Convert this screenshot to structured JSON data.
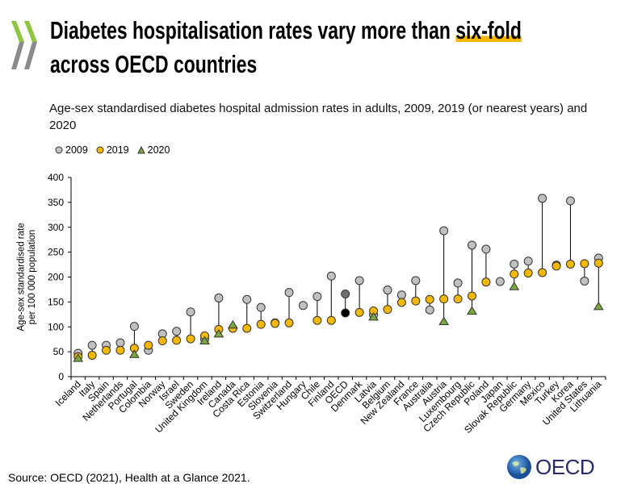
{
  "header": {
    "title_line1_prefix": "Diabetes hospitalisation rates vary more than ",
    "title_highlight": "six-fold",
    "title_line2": "across OECD countries",
    "subtitle": "Age-sex standardised diabetes hospital admission rates in adults, 2009, 2019 (or nearest years) and 2020"
  },
  "colors": {
    "s2009": "#c0c0c0",
    "s2019": "#f5b800",
    "s2020": "#7aa83a",
    "oecd2019": "#000000",
    "oecd2009": "#707070",
    "highlight": "#f5b800"
  },
  "chart_data": {
    "type": "scatter",
    "ylabel": "Age-sex standardised rate per 100 000 population",
    "ylim": [
      0,
      400
    ],
    "yticks": [
      "0",
      "50",
      "100",
      "150",
      "200",
      "250",
      "300",
      "350",
      "400"
    ],
    "legend_position": "top-left",
    "categories": [
      "Iceland",
      "Italy",
      "Spain",
      "Netherlands",
      "Portugal",
      "Colombia",
      "Norway",
      "Israel",
      "Sweden",
      "United Kingdom",
      "Ireland",
      "Canada",
      "Costa Rica",
      "Estonia",
      "Slovenia",
      "Switzerland",
      "Hungary",
      "Chile",
      "Finland",
      "OECD",
      "Denmark",
      "Latvia",
      "Belgium",
      "New Zealand",
      "France",
      "Australia",
      "Austria",
      "Luxembourg",
      "Czech Republic",
      "Poland",
      "Japan",
      "Slovak Republic",
      "Germany",
      "Mexico",
      "Turkey",
      "Korea",
      "United States",
      "Lithuania"
    ],
    "series": [
      {
        "name": "2009",
        "marker": "circle",
        "values": [
          47,
          63,
          63,
          68,
          101,
          53,
          86,
          91,
          130,
          75,
          158,
          null,
          155,
          139,
          108,
          169,
          143,
          161,
          202,
          166,
          193,
          124,
          174,
          164,
          193,
          134,
          293,
          188,
          264,
          256,
          191,
          226,
          232,
          358,
          224,
          353,
          192,
          238
        ]
      },
      {
        "name": "2019",
        "marker": "circle",
        "values": [
          40,
          43,
          53,
          53,
          57,
          63,
          72,
          73,
          76,
          82,
          95,
          97,
          97,
          105,
          107,
          108,
          null,
          113,
          113,
          128,
          129,
          132,
          135,
          149,
          152,
          155,
          156,
          156,
          162,
          190,
          null,
          206,
          208,
          209,
          222,
          226,
          227,
          228
        ]
      },
      {
        "name": "2020",
        "marker": "triangle",
        "values": [
          37,
          null,
          null,
          null,
          45,
          null,
          null,
          null,
          null,
          72,
          86,
          104,
          null,
          null,
          null,
          null,
          null,
          null,
          null,
          null,
          null,
          120,
          null,
          null,
          null,
          null,
          111,
          null,
          132,
          null,
          null,
          181,
          null,
          null,
          null,
          null,
          null,
          141
        ]
      }
    ]
  },
  "footer": {
    "source": "Source: OECD (2021), Health at a Glance 2021.",
    "logo_text": "OECD"
  }
}
